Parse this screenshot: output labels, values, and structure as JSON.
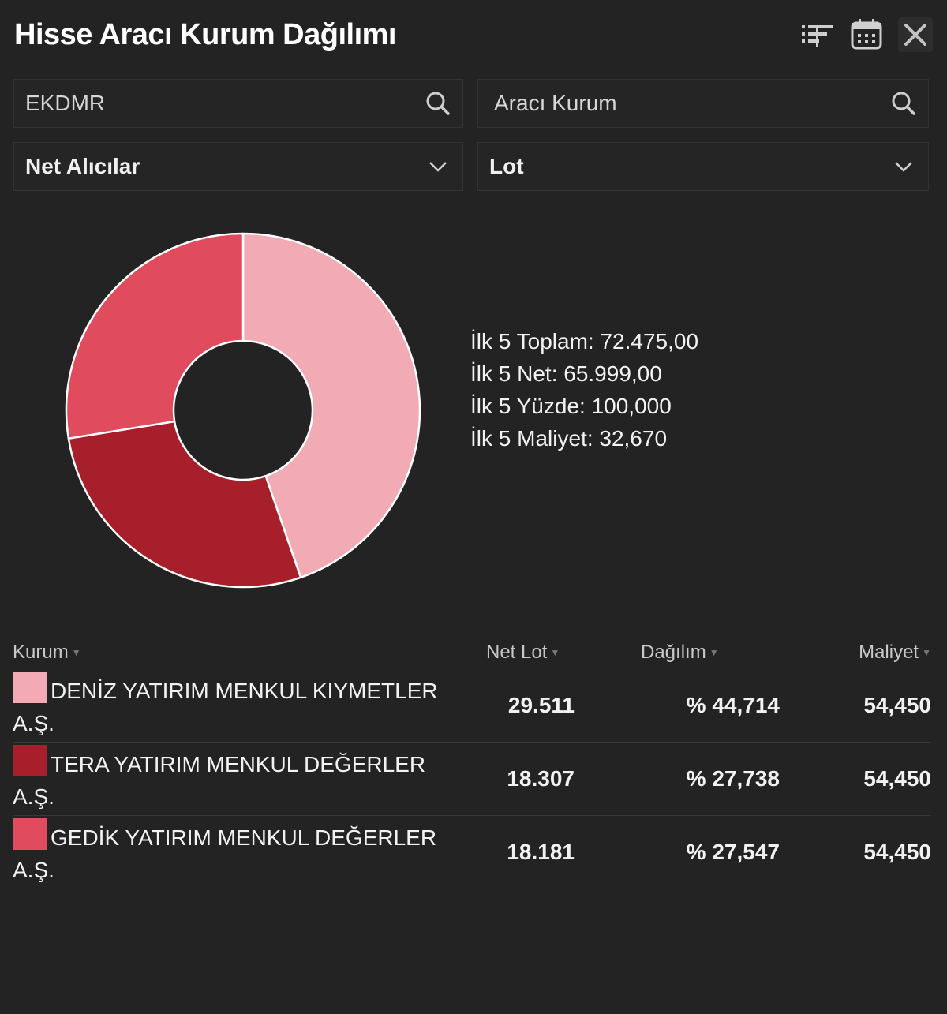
{
  "header": {
    "title": "Hisse Aracı Kurum Dağılımı",
    "icons": [
      "filter-icon",
      "calendar-icon",
      "close-icon"
    ]
  },
  "filters": {
    "symbol_value": "EKDMR",
    "broker_placeholder": "Aracı Kurum",
    "side_selected": "Net Alıcılar",
    "unit_selected": "Lot"
  },
  "summary": {
    "line1": "İlk 5 Toplam: 72.475,00",
    "line2": "İlk 5 Net: 65.999,00",
    "line3": "İlk 5 Yüzde: 100,000",
    "line4": "İlk 5 Maliyet: 32,670"
  },
  "chart_data": {
    "type": "pie",
    "donut": true,
    "categories": [
      "DENİZ YATIRIM MENKUL KIYMETLER A.Ş.",
      "TERA YATIRIM MENKUL DEĞERLER A.Ş.",
      "GEDİK YATIRIM MENKUL DEĞERLER A.Ş."
    ],
    "values": [
      44.714,
      27.738,
      27.547
    ],
    "colors": [
      "#f2aab4",
      "#a61f2b",
      "#e04b5e"
    ]
  },
  "table": {
    "headers": {
      "kurum": "Kurum",
      "net_lot": "Net Lot",
      "dagilim": "Dağılım",
      "maliyet": "Maliyet"
    },
    "rows": [
      {
        "kurum": "DENİZ YATIRIM MENKUL KIYMETLER A.Ş.",
        "net_lot": "29.511",
        "dagilim": "% 44,714",
        "maliyet": "54,450",
        "color": "#f2aab4"
      },
      {
        "kurum": "TERA YATIRIM MENKUL DEĞERLER A.Ş.",
        "net_lot": "18.307",
        "dagilim": "% 27,738",
        "maliyet": "54,450",
        "color": "#a61f2b"
      },
      {
        "kurum": "GEDİK YATIRIM MENKUL DEĞERLER A.Ş.",
        "net_lot": "18.181",
        "dagilim": "% 27,547",
        "maliyet": "54,450",
        "color": "#e04b5e"
      }
    ]
  }
}
